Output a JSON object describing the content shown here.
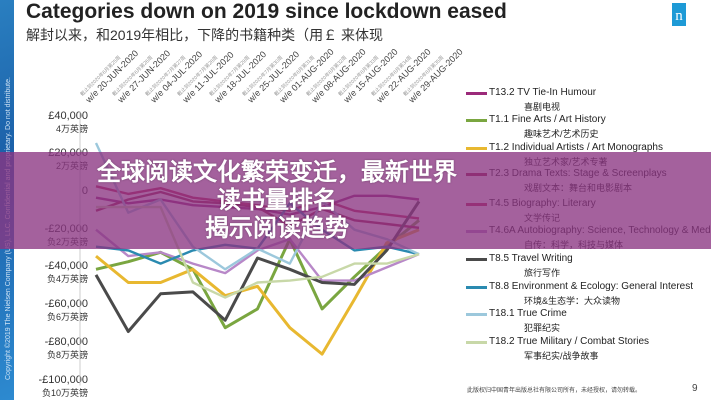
{
  "logo_text": "n",
  "copyright": "Copyright ©2019 The Nielsen Company (US), LLC. Confidential and proprietary. Do not distribute.",
  "footer": "此版权归中国青年出版总社有限公司所有，未经授权，请勿转载。",
  "page_number": "9",
  "overlay": {
    "line1": "全球阅读文化繁荣变迁，最新世界读书量排名",
    "line2": "揭示阅读趋势"
  },
  "chart_data": {
    "type": "line",
    "title": "Categories down on 2019 since lockdown eased",
    "subtitle": "解封以来，和2019年相比，下降的书籍种类（用￡ 来体现",
    "x": [
      "w/e 20-JUN-2020",
      "w/e 27-JUN-2020",
      "w/e 04-JUL-2020",
      "w/e 11-JUL-2020",
      "w/e 18-JUL-2020",
      "w/e 25-JUL-2020",
      "w/e 01-AUG-2020",
      "w/e 08-AUG-2020",
      "w/e 15-AUG-2020",
      "w/e 22-AUG-2020",
      "w/e 29-AUG-2020"
    ],
    "x_cn": [
      "截止到2020年6月第25周",
      "截止到2020年6月第26周",
      "截止到2020年7月第27周",
      "截止到2020年7月第28周",
      "截止到2020年7月第29周",
      "截止到2020年7月第30周",
      "截止到2020年8月第31周",
      "截止到2020年8月第32周",
      "截止到2020年8月第33周",
      "截止到2020年8月第34周",
      "截止到2020年8月第35周"
    ],
    "ylim": [
      -100000,
      40000
    ],
    "yticks": [
      {
        "value": 40000,
        "label": "£40,000",
        "cn": "4万英镑"
      },
      {
        "value": 20000,
        "label": "£20,000",
        "cn": "2万英镑"
      },
      {
        "value": 0,
        "label": "0",
        "cn": ""
      },
      {
        "value": -20000,
        "label": "-£20,000",
        "cn": "负2万英镑"
      },
      {
        "value": -40000,
        "label": "-£40,000",
        "cn": "负4万英镑"
      },
      {
        "value": -60000,
        "label": "-£60,000",
        "cn": "负6万英镑"
      },
      {
        "value": -80000,
        "label": "-£80,000",
        "cn": "负8万英镑"
      },
      {
        "value": -100000,
        "label": "-£100,000",
        "cn": "负10万英镑"
      }
    ],
    "legend_position": "right",
    "series": [
      {
        "name": "T13.2  TV Tie-In Humour",
        "cn": "喜剧电视",
        "color": "#9b2a7a",
        "values": [
          -3000,
          -6000,
          -4000,
          -7000,
          -8000,
          -9000,
          -12000,
          -8000,
          -2000,
          -2000,
          -4000
        ]
      },
      {
        "name": "T1.1  Fine Arts / Art History",
        "cn": "趣味艺术/艺术历史",
        "color": "#7aa640",
        "values": [
          -41000,
          -37000,
          -32000,
          -41000,
          -72000,
          -62000,
          -25000,
          -62000,
          -45000,
          -29000,
          -15000
        ]
      },
      {
        "name": "T1.2  Individual Artists / Art Monographs",
        "cn": "独立艺术家/艺术专著",
        "color": "#e8b830",
        "values": [
          -34000,
          -48000,
          -48000,
          -41000,
          -55000,
          -50000,
          -72000,
          -86000,
          -57000,
          -27000,
          -20000
        ]
      },
      {
        "name": "T2.3  Drama Texts: Stage & Screenplays",
        "cn": "戏剧文本：舞台和电影剧本",
        "color": "#a02050",
        "values": [
          -10000,
          -4000,
          0,
          -5000,
          -6000,
          -8000,
          -18000,
          -9000,
          -15000,
          -17000,
          -19000
        ]
      },
      {
        "name": "T4.5  Biography: Literary",
        "cn": "文学传记",
        "color": "#c02858",
        "values": [
          3000,
          -1000,
          2000,
          -3000,
          -5000,
          -7000,
          -10000,
          -4000,
          -10000,
          -12000,
          -14000
        ]
      },
      {
        "name": "T4.6A  Autobiography: Science, Technology & Medical",
        "cn": "自传：科学，科技与媒体",
        "color": "#b888c8",
        "values": [
          -20000,
          -34000,
          -32000,
          -38000,
          -43000,
          -31000,
          -25000,
          -47000,
          -47000,
          -40000,
          -33000
        ]
      },
      {
        "name": "T8.5  Travel Writing",
        "cn": "旅行写作",
        "color": "#4a4a4a",
        "values": [
          -44000,
          -74000,
          -54000,
          -53000,
          -68000,
          -35000,
          -41000,
          -48000,
          -49000,
          -31000,
          -5000
        ]
      },
      {
        "name": "T8.8  Environment & Ecology: General Interest",
        "cn": "环境&生态学：大众读物",
        "color": "#2a8ab0",
        "values": [
          -29000,
          -31000,
          -38000,
          -31000,
          -28000,
          -30000,
          -6000,
          -20000,
          -31000,
          -29000,
          -33000
        ]
      },
      {
        "name": "T18.1  True Crime",
        "cn": "犯罪纪实",
        "color": "#9cc8dc",
        "values": [
          26000,
          -11000,
          -4000,
          -29000,
          -41000,
          -30000,
          -38000,
          -5000,
          -20000,
          -25000,
          -33000
        ]
      },
      {
        "name": "T18.2  True Military / Combat Stories",
        "cn": "军事纪实/战争故事",
        "color": "#c8d8a8",
        "values": [
          -8000,
          -8000,
          -8000,
          -48000,
          -56000,
          -48000,
          -47000,
          -45000,
          -38000,
          -38000,
          -33000
        ]
      }
    ]
  }
}
